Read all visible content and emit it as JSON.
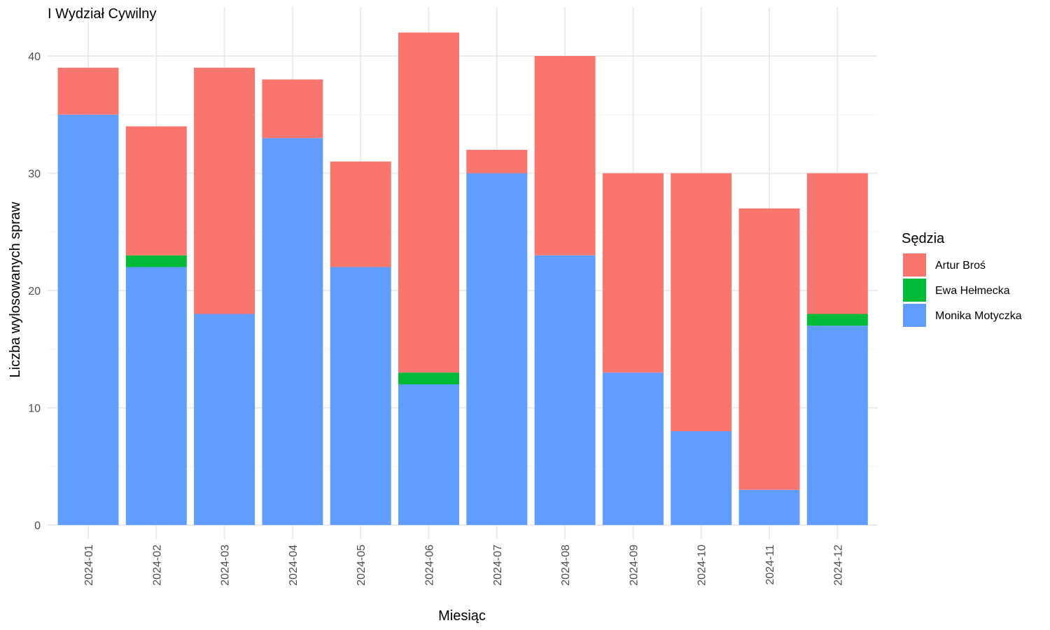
{
  "chart_data": {
    "type": "bar",
    "stacked": true,
    "title": "I Wydział Cywilny",
    "xlabel": "Miesiąc",
    "ylabel": "Liczba wylosowanych spraw",
    "ylim": [
      0,
      43
    ],
    "yticks": [
      0,
      10,
      20,
      30,
      40
    ],
    "grid": true,
    "legend": {
      "title": "Sędzia",
      "position": "right"
    },
    "categories": [
      "2024-01",
      "2024-02",
      "2024-03",
      "2024-04",
      "2024-05",
      "2024-06",
      "2024-07",
      "2024-08",
      "2024-09",
      "2024-10",
      "2024-11",
      "2024-12"
    ],
    "series": [
      {
        "name": "Monika Motyczka",
        "color": "#619CFF",
        "values": [
          35,
          22,
          18,
          33,
          22,
          12,
          30,
          23,
          13,
          8,
          3,
          17
        ]
      },
      {
        "name": "Ewa Hełmecka",
        "color": "#00BA38",
        "values": [
          0,
          1,
          0,
          0,
          0,
          1,
          0,
          0,
          0,
          0,
          0,
          1
        ]
      },
      {
        "name": "Artur Broś",
        "color": "#F8766D",
        "values": [
          4,
          11,
          21,
          5,
          9,
          29,
          2,
          17,
          17,
          22,
          24,
          12
        ]
      }
    ],
    "legend_order": [
      "Artur Broś",
      "Ewa Hełmecka",
      "Monika Motyczka"
    ]
  }
}
